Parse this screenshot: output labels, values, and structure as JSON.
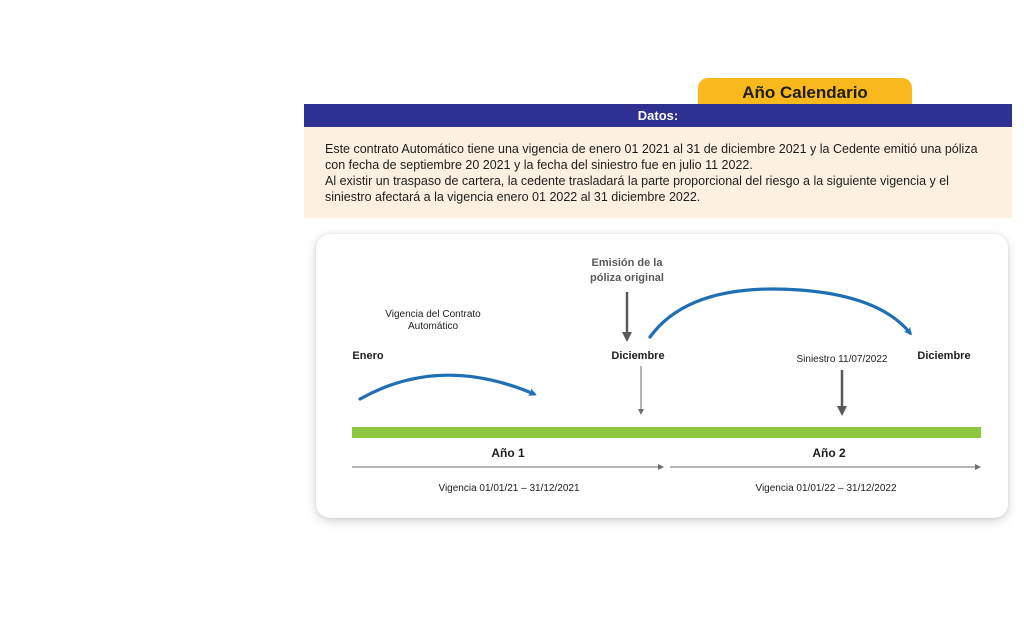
{
  "tab": {
    "label": "Año Calendario"
  },
  "header": {
    "title": "Datos:"
  },
  "datos": {
    "paragraph_1": "Este contrato Automático tiene una vigencia de enero 01 2021 al 31 de diciembre 2021 y la Cedente emitió una póliza con fecha de septiembre 20 2021 y la fecha del siniestro fue en julio 11 2022.",
    "paragraph_2": "Al existir un traspaso de cartera, la cedente trasladará la parte proporcional del riesgo a la siguiente vigencia y el siniestro afectará a la vigencia enero 01 2022 al 31 diciembre 2022."
  },
  "diagram": {
    "contract_label_line1": "Vigencia del Contrato",
    "contract_label_line2": "Automático",
    "emission_label_line1": "Emisión de la",
    "emission_label_line2": "póliza original",
    "start_label": "Enero",
    "mid_label": "Diciembre",
    "claim_label": "Siniestro 11/07/2022",
    "end_label": "Diciembre",
    "year1_label": "Año 1",
    "year2_label": "Año 2",
    "period1_label": "Vigencia 01/01/21 – 31/12/2021",
    "period2_label": "Vigencia 01/01/22 – 31/12/2022"
  },
  "colors": {
    "header_bg": "#2f3192",
    "tab_bg": "#f9b81b",
    "datos_bg": "#fdf0e1",
    "timeline_bar": "#8dc63f",
    "curve_arrow": "#1f6fb5",
    "pointer_arrow": "#58595b"
  }
}
